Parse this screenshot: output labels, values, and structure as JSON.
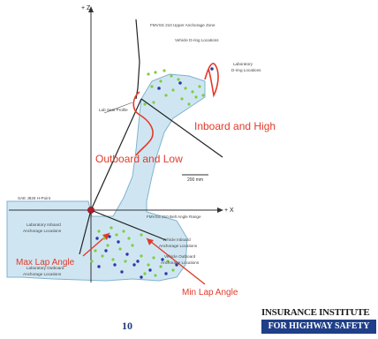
{
  "axes": {
    "z_label": "+ Z",
    "x_label": "+ X"
  },
  "labels": {
    "upper_anchorage_zone": "FMVSS 210 Upper Anchorage Zone",
    "vehicle_d_ring": "Vehicle D-ring Locations",
    "lab_d_ring_line1": "Laboratory",
    "lab_d_ring_line2": "D-ring Locations",
    "lab_seat_profile": "Lab Seat Profile",
    "inboard_high": "Inboard and High",
    "outboard_low": "Outboard and Low",
    "scale_bar": "200 mm",
    "sae_h_point": "SAE J826 H-Point",
    "belt_angle_range": "FMVSS 210 Belt Angle Range",
    "lab_inboard_line1": "Laboratory Inboard",
    "lab_inboard_line2": "Anchorage Locations",
    "veh_inboard_line1": "Vehicle Inboard",
    "veh_inboard_line2": "Anchorage Locations",
    "lab_outboard_line1": "Laboratory Outboard",
    "lab_outboard_line2": "Anchorage Locations",
    "veh_outboard_line1": "Vehicle Outboard",
    "veh_outboard_line2": "Anchorage Locations",
    "max_lap_angle": "Max Lap Angle",
    "min_lap_angle": "Min Lap Angle"
  },
  "footer": {
    "page_number": "10",
    "logo_top": "INSURANCE INSTITUTE",
    "logo_bottom": "FOR HIGHWAY SAFETY"
  },
  "colors": {
    "region_fill": "#cfe6f2",
    "region_stroke": "#7fb3cf",
    "annotation_red": "#e23a2a",
    "vehicle_points": "#7ccf3e",
    "lab_points": "#2c39a6",
    "logo_blue": "#1f3f88"
  }
}
